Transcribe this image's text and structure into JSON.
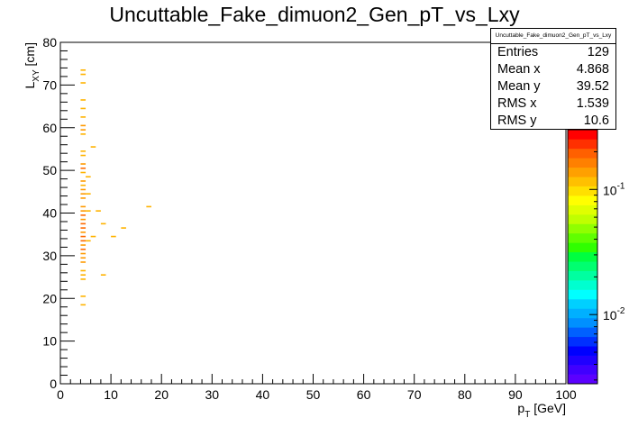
{
  "chart_data": {
    "type": "heatmap",
    "title": "Uncuttable_Fake_dimuon2_Gen_pT_vs_Lxy",
    "xlabel": "p_T [GeV]",
    "ylabel": "L_XY [cm]",
    "xlim": [
      0,
      100
    ],
    "ylim": [
      0,
      80
    ],
    "xticks": [
      "0",
      "10",
      "20",
      "30",
      "40",
      "50",
      "60",
      "70",
      "80",
      "90",
      "100"
    ],
    "yticks": [
      "0",
      "10",
      "20",
      "30",
      "40",
      "50",
      "60",
      "70",
      "80"
    ],
    "z_scale": "log",
    "zticks": [
      {
        "base": "10",
        "exp": "-2",
        "value": 0.01
      },
      {
        "base": "10",
        "exp": "-1",
        "value": 0.1
      }
    ],
    "grid": false,
    "cells": [
      {
        "x": 4.5,
        "y": 18.5,
        "w": 0.0078
      },
      {
        "x": 4.5,
        "y": 20.5,
        "w": 0.0078
      },
      {
        "x": 4.5,
        "y": 24.5,
        "w": 0.0078
      },
      {
        "x": 4.5,
        "y": 25.5,
        "w": 0.0078
      },
      {
        "x": 4.5,
        "y": 26.5,
        "w": 0.0078
      },
      {
        "x": 4.5,
        "y": 28.5,
        "w": 0.0155
      },
      {
        "x": 4.5,
        "y": 29.5,
        "w": 0.0155
      },
      {
        "x": 4.5,
        "y": 30.5,
        "w": 0.0155
      },
      {
        "x": 4.5,
        "y": 31.5,
        "w": 0.0233
      },
      {
        "x": 4.5,
        "y": 32.5,
        "w": 0.0155
      },
      {
        "x": 4.5,
        "y": 33.5,
        "w": 0.0233
      },
      {
        "x": 4.5,
        "y": 34.5,
        "w": 0.0233
      },
      {
        "x": 4.5,
        "y": 35.5,
        "w": 0.0155
      },
      {
        "x": 4.5,
        "y": 36.5,
        "w": 0.0233
      },
      {
        "x": 4.5,
        "y": 37.5,
        "w": 0.0233
      },
      {
        "x": 4.5,
        "y": 38.5,
        "w": 0.0155
      },
      {
        "x": 4.5,
        "y": 39.5,
        "w": 0.0233
      },
      {
        "x": 4.5,
        "y": 40.5,
        "w": 0.0155
      },
      {
        "x": 4.5,
        "y": 41.5,
        "w": 0.0155
      },
      {
        "x": 4.5,
        "y": 43.5,
        "w": 0.0155
      },
      {
        "x": 4.5,
        "y": 44.5,
        "w": 0.0155
      },
      {
        "x": 4.5,
        "y": 45.5,
        "w": 0.0155
      },
      {
        "x": 4.5,
        "y": 46.5,
        "w": 0.0078
      },
      {
        "x": 4.5,
        "y": 47.5,
        "w": 0.0155
      },
      {
        "x": 4.5,
        "y": 49.5,
        "w": 0.0078
      },
      {
        "x": 4.5,
        "y": 50.5,
        "w": 0.0233
      },
      {
        "x": 4.5,
        "y": 51.5,
        "w": 0.0155
      },
      {
        "x": 4.5,
        "y": 53.5,
        "w": 0.0078
      },
      {
        "x": 4.5,
        "y": 54.5,
        "w": 0.0078
      },
      {
        "x": 4.5,
        "y": 58.5,
        "w": 0.0078
      },
      {
        "x": 4.5,
        "y": 59.5,
        "w": 0.0155
      },
      {
        "x": 4.5,
        "y": 60.5,
        "w": 0.0155
      },
      {
        "x": 4.5,
        "y": 62.5,
        "w": 0.0078
      },
      {
        "x": 4.5,
        "y": 64.5,
        "w": 0.0078
      },
      {
        "x": 4.5,
        "y": 66.5,
        "w": 0.0078
      },
      {
        "x": 4.5,
        "y": 70.5,
        "w": 0.0078
      },
      {
        "x": 4.5,
        "y": 72.5,
        "w": 0.0078
      },
      {
        "x": 4.5,
        "y": 73.5,
        "w": 0.0078
      },
      {
        "x": 5.5,
        "y": 33.5,
        "w": 0.0078
      },
      {
        "x": 5.5,
        "y": 40.5,
        "w": 0.0078
      },
      {
        "x": 5.5,
        "y": 44.5,
        "w": 0.0078
      },
      {
        "x": 5.5,
        "y": 48.5,
        "w": 0.0078
      },
      {
        "x": 6.5,
        "y": 34.5,
        "w": 0.0078
      },
      {
        "x": 6.5,
        "y": 55.5,
        "w": 0.0078
      },
      {
        "x": 7.5,
        "y": 40.5,
        "w": 0.0078
      },
      {
        "x": 8.5,
        "y": 25.5,
        "w": 0.0078
      },
      {
        "x": 8.5,
        "y": 37.5,
        "w": 0.0078
      },
      {
        "x": 10.5,
        "y": 34.5,
        "w": 0.0078
      },
      {
        "x": 12.5,
        "y": 36.5,
        "w": 0.0078
      },
      {
        "x": 17.5,
        "y": 41.5,
        "w": 0.0078
      }
    ]
  },
  "stats": {
    "title": "Uncuttable_Fake_dimuon2_Gen_pT_vs_Lxy",
    "rows": [
      {
        "label": "Entries",
        "value": "129"
      },
      {
        "label": "Mean x",
        "value": "4.868"
      },
      {
        "label": "Mean y",
        "value": "39.52"
      },
      {
        "label": "RMS x",
        "value": "1.539"
      },
      {
        "label": "RMS y",
        "value": "10.6"
      }
    ]
  }
}
